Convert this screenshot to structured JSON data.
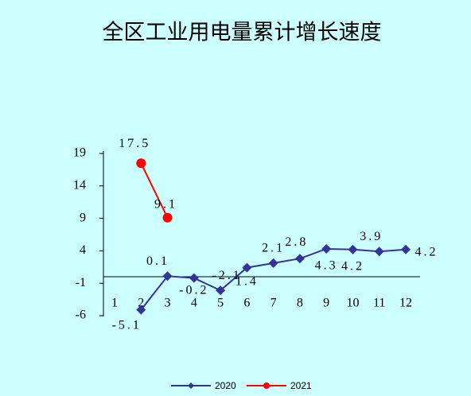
{
  "chart_data": {
    "type": "line",
    "title": "全区工业用电量累计增长速度",
    "categories": [
      "1",
      "2",
      "3",
      "4",
      "5",
      "6",
      "7",
      "8",
      "9",
      "10",
      "11",
      "12"
    ],
    "series": [
      {
        "name": "2020",
        "color": "#333399",
        "marker": "diamond",
        "values": [
          null,
          -5.1,
          0.1,
          -0.2,
          -2.1,
          1.4,
          2.1,
          2.8,
          4.3,
          4.2,
          3.9,
          4.2
        ]
      },
      {
        "name": "2021",
        "color": "#ff0000",
        "marker": "circle",
        "values": [
          null,
          17.5,
          9.1,
          null,
          null,
          null,
          null,
          null,
          null,
          null,
          null,
          null
        ]
      }
    ],
    "ylim": [
      -6,
      19
    ],
    "yticks": [
      -6,
      -1,
      4,
      9,
      14,
      19
    ],
    "grid": false,
    "legend": "bottom"
  }
}
